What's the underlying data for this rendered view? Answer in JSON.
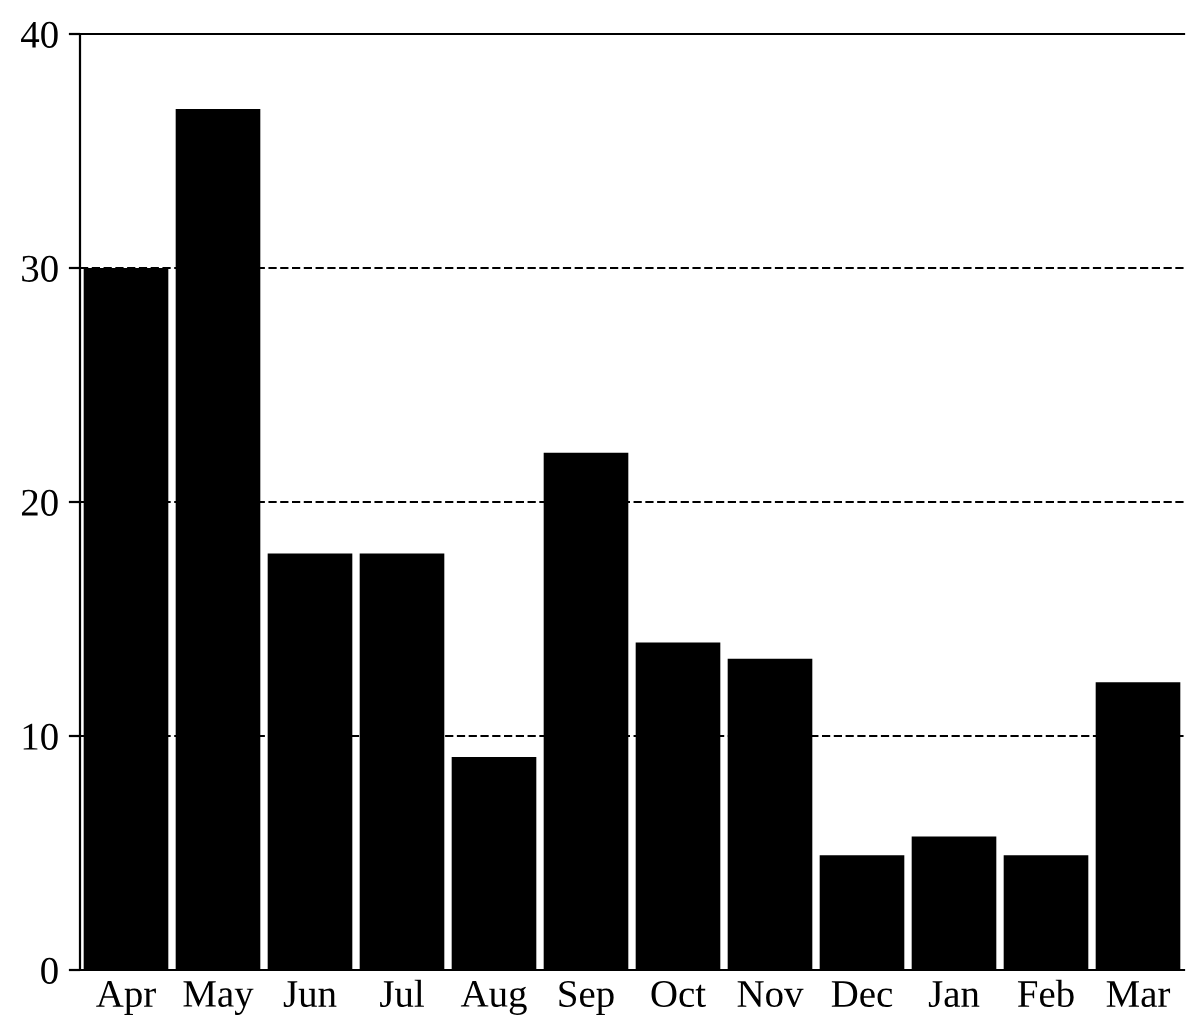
{
  "chart_data": {
    "type": "bar",
    "categories": [
      "Apr",
      "May",
      "Jun",
      "Jul",
      "Aug",
      "Sep",
      "Oct",
      "Nov",
      "Dec",
      "Jan",
      "Feb",
      "Mar"
    ],
    "values": [
      30,
      36.8,
      17.8,
      17.8,
      9.1,
      22.1,
      14.0,
      13.3,
      4.9,
      5.7,
      4.9,
      12.3
    ],
    "color": "#000000",
    "ylim": [
      0,
      40
    ],
    "yticks": [
      0,
      10,
      20,
      30,
      40
    ],
    "grid": "y",
    "line_style": "dashed"
  }
}
